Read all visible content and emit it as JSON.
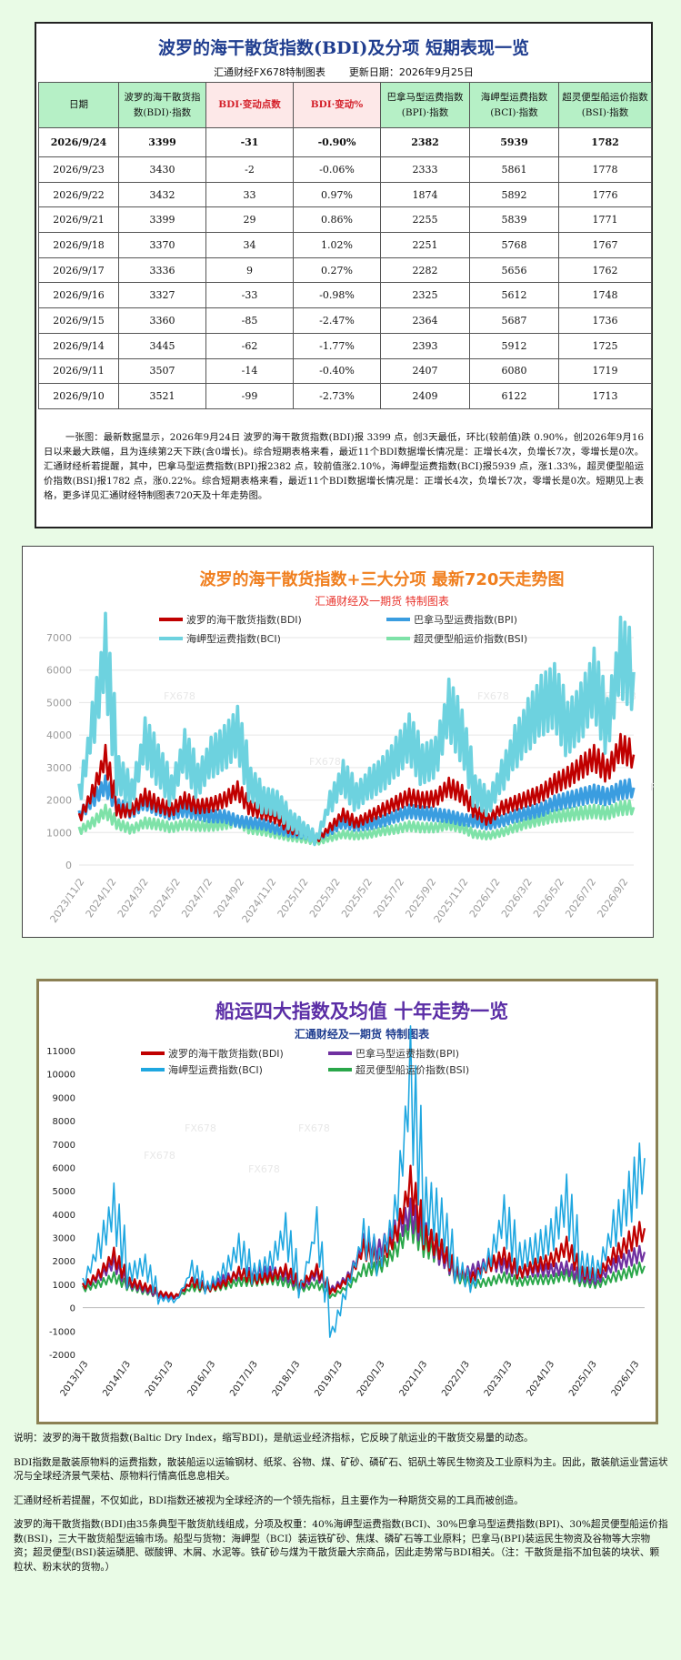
{
  "table_card": {
    "title": "波罗的海干散货指数(BDI)及分项  短期表现一览",
    "maker": "汇通财经FX678特制图表",
    "update": "更新日期：2026年9月25日",
    "headers": [
      "日期",
      "波罗的海干散货指数(BDI)·指数",
      "BDI·变动点数",
      "BDI·变动%",
      "巴拿马型运费指数(BPI)·指数",
      "海岬型运费指数(BCI)·指数",
      "超灵便型船运价指数(BSI)·指数"
    ],
    "rows": [
      [
        "2026/9/24",
        "3399",
        "-31",
        "-0.90%",
        "2382",
        "5939",
        "1782"
      ],
      [
        "2026/9/23",
        "3430",
        "-2",
        "-0.06%",
        "2333",
        "5861",
        "1778"
      ],
      [
        "2026/9/22",
        "3432",
        "33",
        "0.97%",
        "1874",
        "5892",
        "1776"
      ],
      [
        "2026/9/21",
        "3399",
        "29",
        "0.86%",
        "2255",
        "5839",
        "1771"
      ],
      [
        "2026/9/18",
        "3370",
        "34",
        "1.02%",
        "2251",
        "5768",
        "1767"
      ],
      [
        "2026/9/17",
        "3336",
        "9",
        "0.27%",
        "2282",
        "5656",
        "1762"
      ],
      [
        "2026/9/16",
        "3327",
        "-33",
        "-0.98%",
        "2325",
        "5612",
        "1748"
      ],
      [
        "2026/9/15",
        "3360",
        "-85",
        "-2.47%",
        "2364",
        "5687",
        "1736"
      ],
      [
        "2026/9/14",
        "3445",
        "-62",
        "-1.77%",
        "2393",
        "5912",
        "1725"
      ],
      [
        "2026/9/11",
        "3507",
        "-14",
        "-0.40%",
        "2407",
        "6080",
        "1719"
      ],
      [
        "2026/9/10",
        "3521",
        "-99",
        "-2.73%",
        "2409",
        "6122",
        "1713"
      ]
    ],
    "note": "一张图：最新数据显示，2026年9月24日 波罗的海干散货指数(BDI)报 3399 点，创3天最低，环比(较前值)跌 0.90%，创2026年9月16日以来最大跌幅，且为连续第2天下跌(含0增长)。综合短期表格来看，最近11个BDI数据增长情况是：正增长4次，负增长7次，零增长是0次。汇通财经析若提醒，其中，巴拿马型运费指数(BPI)报2382 点，较前值涨2.10%，海岬型运费指数(BCI)报5939 点，涨1.33%，超灵便型船运价指数(BSI)报1782 点，涨0.22%。综合短期表格来看，最近11个BDI数据增长情况是：正增长4次，负增长7次，零增长是0次。短期见上表格，更多详见汇通财经特制图表720天及十年走势图。"
  },
  "chart_data": [
    {
      "type": "line",
      "title": "波罗的海干散货指数+三大分项  最新720天走势图",
      "subtitle": "汇通财经及一期货  特制图表",
      "ylim": [
        0,
        7000
      ],
      "yticks": [
        0,
        1000,
        2000,
        3000,
        4000,
        5000,
        6000,
        7000
      ],
      "x_ticks": [
        "2023/11/2",
        "2024/1/2",
        "2024/3/2",
        "2024/5/2",
        "2024/7/2",
        "2024/9/2",
        "2024/11/2",
        "2025/1/2",
        "2025/3/2",
        "2025/5/2",
        "2025/7/2",
        "2025/9/2",
        "2025/11/2",
        "2026/1/2",
        "2026/3/2",
        "2026/5/2",
        "2026/7/2",
        "2026/9/2"
      ],
      "grid": true,
      "legend": "top",
      "watermark": "FX678",
      "series": [
        {
          "name": "波罗的海干散货指数(BDI)",
          "color": "#c00000",
          "values": [
            1420,
            2200,
            3300,
            1650,
            1700,
            2100,
            1850,
            1700,
            2000,
            1800,
            1850,
            2000,
            2300,
            1750,
            1600,
            1450,
            1100,
            1000,
            760,
            1150,
            1550,
            1300,
            1500,
            1700,
            1900,
            2100,
            2000,
            2050,
            2400,
            2200,
            1650,
            1400,
            1750,
            1900,
            2050,
            2200,
            2500,
            2700,
            3000,
            3300,
            2900,
            3600,
            3399
          ]
        },
        {
          "name": "巴拿马型运费指数(BPI)",
          "color": "#3a9de0",
          "values": [
            1500,
            2000,
            2450,
            1800,
            1650,
            1950,
            1750,
            1600,
            1700,
            1600,
            1500,
            1500,
            1350,
            1300,
            1250,
            1100,
            1000,
            950,
            820,
            1050,
            1300,
            1200,
            1250,
            1350,
            1500,
            1650,
            1600,
            1550,
            1500,
            1400,
            1350,
            1250,
            1350,
            1500,
            1600,
            1700,
            1900,
            2000,
            2100,
            2200,
            2100,
            2300,
            2382
          ]
        },
        {
          "name": "海岬型运费指数(BCI)",
          "color": "#6dd2df",
          "values": [
            2100,
            4200,
            6500,
            2800,
            2200,
            3800,
            3100,
            2300,
            3500,
            2600,
            3300,
            3600,
            4100,
            2500,
            2000,
            1900,
            1400,
            1100,
            800,
            1900,
            2700,
            2100,
            2500,
            2800,
            3300,
            3900,
            3100,
            3300,
            4800,
            4000,
            2300,
            1900,
            2700,
            3600,
            4300,
            4900,
            5200,
            4200,
            4700,
            5600,
            4300,
            6400,
            5939
          ]
        },
        {
          "name": "超灵便型船运价指数(BSI)",
          "color": "#7ee2a8",
          "values": [
            1050,
            1300,
            1650,
            1250,
            1100,
            1300,
            1250,
            1150,
            1250,
            1200,
            1200,
            1250,
            1350,
            1100,
            1050,
            950,
            850,
            800,
            700,
            830,
            950,
            900,
            950,
            1050,
            1100,
            1200,
            1150,
            1150,
            1250,
            1150,
            950,
            900,
            1000,
            1150,
            1300,
            1400,
            1500,
            1550,
            1600,
            1650,
            1600,
            1750,
            1782
          ]
        }
      ]
    },
    {
      "type": "line",
      "title": "船运四大指数及均值 十年走势一览",
      "subtitle": "汇通财经及一期货 特制图表",
      "ylim": [
        -2000,
        11000
      ],
      "yticks": [
        -2000,
        -1000,
        0,
        1000,
        2000,
        3000,
        4000,
        5000,
        6000,
        7000,
        8000,
        9000,
        10000,
        11000
      ],
      "x_ticks": [
        "2013/1/3",
        "2014/1/3",
        "2015/1/3",
        "2016/1/3",
        "2017/1/3",
        "2018/1/3",
        "2019/1/3",
        "2020/1/3",
        "2021/1/3",
        "2022/1/3",
        "2023/1/3",
        "2024/1/3",
        "2025/1/3",
        "2026/1/3"
      ],
      "grid": false,
      "legend": "top",
      "watermark": "FX678",
      "series": [
        {
          "name": "波罗的海干散货指数(BDI)",
          "color": "#c00000",
          "values": [
            900,
            1400,
            2200,
            1100,
            900,
            600,
            500,
            1100,
            800,
            1000,
            1500,
            1200,
            1300,
            1600,
            1000,
            1600,
            700,
            1200,
            2500,
            2000,
            3000,
            5200,
            3000,
            2500,
            1500,
            1300,
            1800,
            2200,
            1500,
            1800,
            2000,
            2600,
            1500,
            1400,
            2200,
            2800,
            3399
          ]
        },
        {
          "name": "巴拿马型运费指数(BPI)",
          "color": "#7030a0",
          "values": [
            900,
            1300,
            1900,
            1000,
            800,
            500,
            450,
            1100,
            900,
            1200,
            1400,
            1500,
            1500,
            1400,
            900,
            1400,
            800,
            1300,
            2700,
            2500,
            3200,
            4000,
            3100,
            2200,
            1400,
            1600,
            1900,
            1800,
            1500,
            1600,
            1600,
            1700,
            1300,
            1200,
            1800,
            2100,
            2382
          ]
        },
        {
          "name": "海岬型运费指数(BCI)",
          "color": "#1fa7e0",
          "values": [
            1000,
            2500,
            4200,
            1500,
            1800,
            400,
            300,
            1600,
            900,
            1500,
            2500,
            1500,
            1900,
            3200,
            900,
            3400,
            -1100,
            1000,
            3000,
            2000,
            3800,
            9500,
            4400,
            3700,
            1700,
            1000,
            2000,
            3800,
            2200,
            2500,
            3000,
            4500,
            1900,
            1600,
            3300,
            4600,
            6400
          ]
        },
        {
          "name": "超灵便型船运价指数(BSI)",
          "color": "#2aa74a",
          "values": [
            800,
            1000,
            1300,
            900,
            700,
            500,
            450,
            850,
            800,
            900,
            1100,
            1100,
            1200,
            1100,
            800,
            1000,
            500,
            900,
            1600,
            1700,
            2400,
            3500,
            2600,
            2200,
            1300,
            1000,
            1100,
            1300,
            1100,
            1200,
            1200,
            1400,
            1100,
            1000,
            1300,
            1500,
            1782
          ]
        }
      ]
    }
  ],
  "explanation": [
    "说明：波罗的海干散货指数(Baltic Dry Index，缩写BDI)，是航运业经济指标，它反映了航运业的干散货交易量的动态。",
    "BDI指数是散装原物料的运费指数，散装船运以运输钢材、纸浆、谷物、煤、矿砂、磷矿石、铝矾土等民生物资及工业原料为主。因此，散装航运业营运状况与全球经济景气荣枯、原物料行情高低息息相关。",
    "汇通财经析若提醒，不仅如此，BDI指数还被视为全球经济的一个领先指标，且主要作为一种期货交易的工具而被创造。",
    "波罗的海干散货指数(BDI)由35条典型干散货航线组成，分项及权重：40%海岬型运费指数(BCI)、30%巴拿马型运费指数(BPI)、30%超灵便型船运价指数(BSI)，三大干散货船型运输市场。船型与货物：海岬型（BCI）装运铁矿砂、焦煤、磷矿石等工业原料；巴拿马(BPI)装运民生物资及谷物等大宗物资；超灵便型(BSI)装运磷肥、碳酸钾、木屑、水泥等。铁矿砂与煤为干散货最大宗商品，因此走势常与BDI相关。（注：干散货是指不加包装的块状、颗粒状、粉末状的货物。）"
  ]
}
